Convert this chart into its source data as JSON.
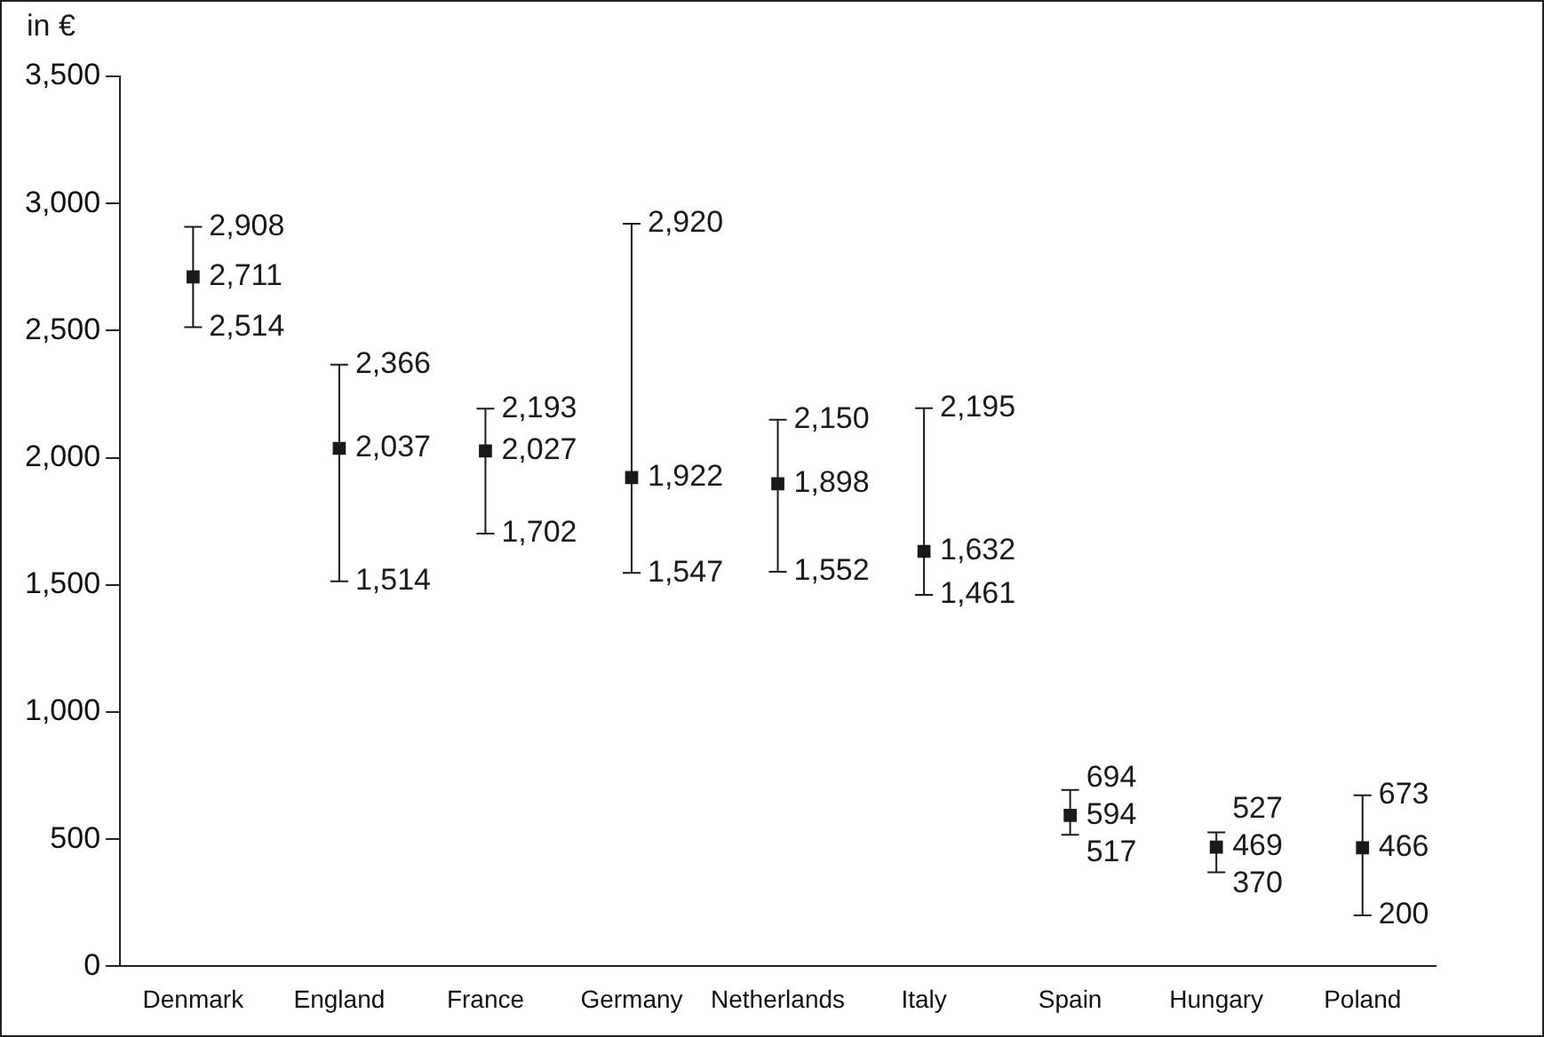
{
  "chart_data": {
    "type": "scatter",
    "ylabel": "in €",
    "categories": [
      "Denmark",
      "England",
      "France",
      "Germany",
      "Netherlands",
      "Italy",
      "Spain",
      "Hungary",
      "Poland"
    ],
    "values": [
      2711,
      2037,
      2027,
      1922,
      1898,
      1632,
      594,
      469,
      466
    ],
    "value_labels": [
      "2,711",
      "2,037",
      "2,027",
      "1,922",
      "1,898",
      "1,632",
      "594",
      "469",
      "466"
    ],
    "errors": [
      [
        2514,
        2908
      ],
      [
        1514,
        2366
      ],
      [
        1702,
        2193
      ],
      [
        1547,
        2920
      ],
      [
        1552,
        2150
      ],
      [
        1461,
        2195
      ],
      [
        517,
        694
      ],
      [
        370,
        527
      ],
      [
        200,
        673
      ]
    ],
    "annotations": [
      {
        "text": "2,908",
        "x": "Denmark",
        "y": 2908
      },
      {
        "text": "2,514",
        "x": "Denmark",
        "y": 2514
      },
      {
        "text": "2,366",
        "x": "England",
        "y": 2366
      },
      {
        "text": "1,514",
        "x": "England",
        "y": 1514
      },
      {
        "text": "2,193",
        "x": "France",
        "y": 2193
      },
      {
        "text": "1,702",
        "x": "France",
        "y": 1702
      },
      {
        "text": "2,920",
        "x": "Germany",
        "y": 2920
      },
      {
        "text": "1,547",
        "x": "Germany",
        "y": 1547
      },
      {
        "text": "2,150",
        "x": "Netherlands",
        "y": 2150
      },
      {
        "text": "1,552",
        "x": "Netherlands",
        "y": 1552
      },
      {
        "text": "2,195",
        "x": "Italy",
        "y": 2195
      },
      {
        "text": "1,461",
        "x": "Italy",
        "y": 1461
      },
      {
        "text": "694",
        "x": "Spain",
        "y": 694
      },
      {
        "text": "517",
        "x": "Spain",
        "y": 517
      },
      {
        "text": "527",
        "x": "Hungary",
        "y": 527
      },
      {
        "text": "370",
        "x": "Hungary",
        "y": 370
      },
      {
        "text": "673",
        "x": "Poland",
        "y": 673
      },
      {
        "text": "200",
        "x": "Poland",
        "y": 200
      }
    ],
    "color": "#1a1a1a",
    "ylim": [
      0,
      3500
    ],
    "yticks": [
      {
        "value": 0,
        "label": "0"
      },
      {
        "value": 500,
        "label": "500"
      },
      {
        "value": 1000,
        "label": "1,000"
      },
      {
        "value": 1500,
        "label": "1,500"
      },
      {
        "value": 2000,
        "label": "2,000"
      },
      {
        "value": 2500,
        "label": "2,500"
      },
      {
        "value": 3000,
        "label": "3,000"
      },
      {
        "value": 3500,
        "label": "3,500"
      }
    ],
    "marker": "square",
    "grid": false,
    "legend": false
  }
}
